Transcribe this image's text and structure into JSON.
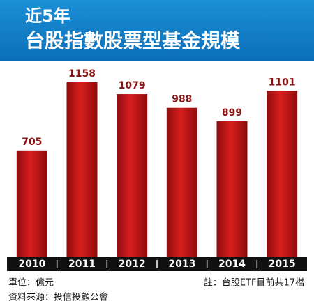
{
  "chart_data": {
    "type": "bar",
    "title": "近5年",
    "subtitle": "台股指數股票型基金規模",
    "categories": [
      "2010",
      "2011",
      "2012",
      "2013",
      "2014",
      "2015"
    ],
    "values": [
      705,
      1158,
      1079,
      988,
      899,
      1101
    ],
    "color": "#d81e1e",
    "notes": [
      "單位：億元",
      "註：台股ETF目前共17檔",
      "資料來源：投信投顧公會"
    ]
  }
}
